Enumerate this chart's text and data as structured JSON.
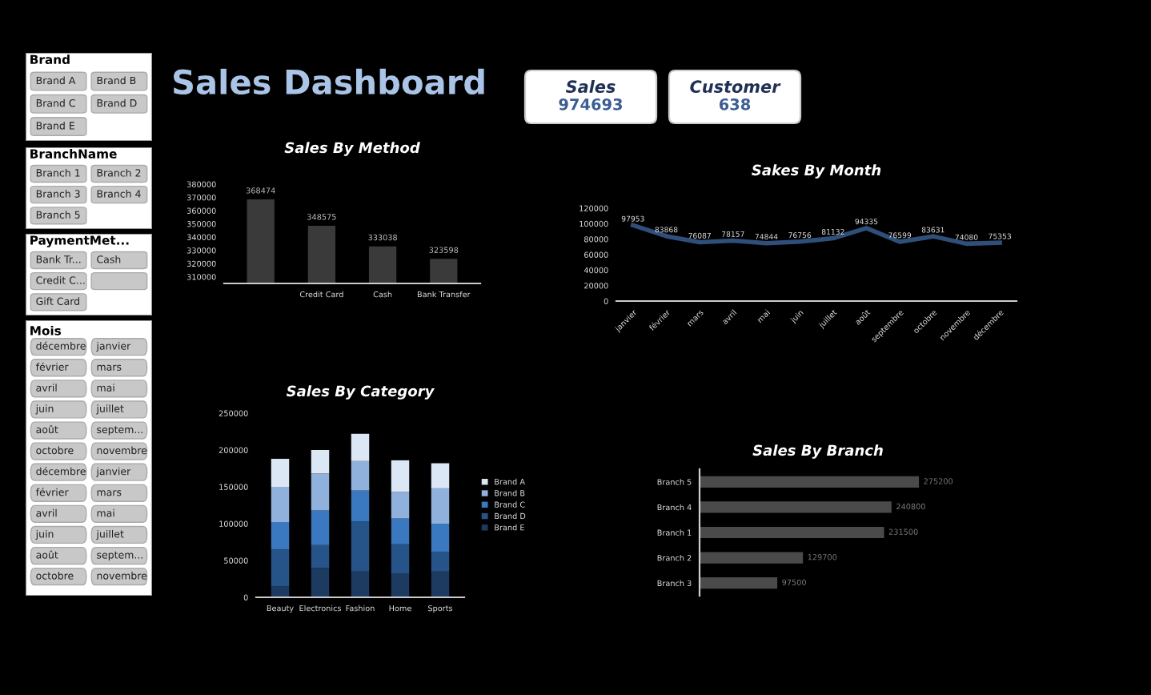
{
  "chart_data": [
    {
      "type": "other",
      "title": "Brand",
      "annotations": [
        "Brand A",
        "Brand B",
        "Brand C",
        "Brand D",
        "Brand E"
      ]
    },
    {
      "type": "other",
      "title": "BranchName",
      "annotations": [
        "Branch 1",
        "Branch 2",
        "Branch 3",
        "Branch 4",
        "Branch 5"
      ]
    },
    {
      "type": "other",
      "title": "PaymentMet...",
      "annotations": [
        "Bank Tr...",
        "Cash",
        "Credit C...",
        null,
        "Gift Card"
      ]
    },
    {
      "type": "other",
      "title": "Mois",
      "annotations": [
        "décembre",
        "janvier",
        "février",
        "mars",
        "avril",
        "mai",
        "juin",
        "juillet",
        "août",
        "septem...",
        "octobre",
        "novembre",
        "décembre",
        "janvier",
        "février",
        "mars",
        "avril",
        "mai",
        "juin",
        "juillet",
        "août",
        "septem...",
        "octobre",
        "novembre"
      ]
    },
    {
      "type": "other",
      "title": "Sales Dashboard",
      "annotations": [
        "Sales",
        "974693",
        "Customer",
        "638"
      ]
    },
    {
      "type": "bar",
      "title": "Sales By Method",
      "categories": [
        null,
        "Credit Card",
        "Cash",
        "Bank Transfer"
      ],
      "values": [
        368474,
        348575,
        333038,
        323598
      ],
      "color": "#3a3a3a",
      "ylim": [
        305000,
        380000
      ],
      "yticks": [
        310000,
        320000,
        330000,
        340000,
        350000,
        360000,
        370000,
        380000
      ],
      "data_labels": true,
      "grid": false
    },
    {
      "type": "line",
      "title": "Sakes By Month",
      "categories": [
        "janvier",
        "février",
        "mars",
        "avril",
        "mai",
        "juin",
        "juillet",
        "août",
        "septembre",
        "octobre",
        "novembre",
        "décembre"
      ],
      "values": [
        97953,
        83868,
        76087,
        78157,
        74844,
        76756,
        81132,
        94335,
        76599,
        83631,
        74080,
        75353
      ],
      "color": "#2f4f7a",
      "ylim": [
        0,
        120000
      ],
      "yticks": [
        0,
        20000,
        40000,
        60000,
        80000,
        100000,
        120000
      ],
      "data_labels": true,
      "marker": "none",
      "line_style": "solid",
      "grid": false
    },
    {
      "type": "bar",
      "title": "Sales By Category",
      "stacked": true,
      "categories": [
        "Beauty",
        "Electronics",
        "Fashion",
        "Home",
        "Sports"
      ],
      "series": [
        {
          "name": "Brand E",
          "color": "#1d3a60",
          "values": [
            15000,
            40000,
            35000,
            32000,
            35000
          ]
        },
        {
          "name": "Brand D",
          "color": "#265489",
          "values": [
            50000,
            31000,
            68000,
            40000,
            27000
          ]
        },
        {
          "name": "Brand C",
          "color": "#3a78c0",
          "values": [
            37000,
            47000,
            42000,
            35000,
            38000
          ]
        },
        {
          "name": "Brand B",
          "color": "#8fb1dc",
          "values": [
            48000,
            50000,
            40000,
            36000,
            48000
          ]
        },
        {
          "name": "Brand A",
          "color": "#dce7f5",
          "values": [
            38000,
            32000,
            37000,
            43000,
            34000
          ]
        }
      ],
      "ylim": [
        0,
        250000
      ],
      "yticks": [
        0,
        50000,
        100000,
        150000,
        200000,
        250000
      ],
      "legend": "right",
      "grid": false
    },
    {
      "type": "bar",
      "title": "Sales By Branch",
      "orientation": "horizontal",
      "categories": [
        "Branch 5",
        "Branch 4",
        "Branch 1",
        "Branch 2",
        "Branch 3"
      ],
      "values": [
        275200,
        240800,
        231500,
        129700,
        97500
      ],
      "color": "#4a4a4a",
      "data_labels": true,
      "tick_labels": "y",
      "grid": false
    }
  ]
}
